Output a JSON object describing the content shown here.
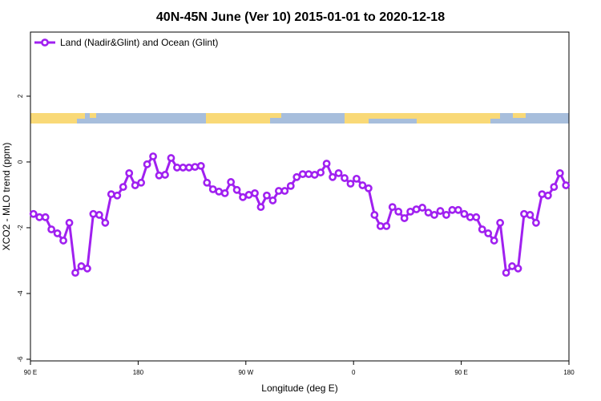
{
  "chart_data": {
    "type": "line",
    "title": "40N-45N June (Ver 10)   2015-01-01 to 2020-12-18",
    "xlabel": "Longitude (deg E)",
    "ylabel": "XCO2 - MLO trend (ppm)",
    "x": [
      92.5,
      97.5,
      102.5,
      107.5,
      112.5,
      117.5,
      122.5,
      127.5,
      132.5,
      137.5,
      142.5,
      147.5,
      152.5,
      157.5,
      162.5,
      167.5,
      172.5,
      177.5,
      182.5,
      187.5,
      192.5,
      197.5,
      202.5,
      207.5,
      212.5,
      217.5,
      222.5,
      227.5,
      232.5,
      237.5,
      242.5,
      247.5,
      252.5,
      257.5,
      262.5,
      267.5,
      272.5,
      277.5,
      282.5,
      287.5,
      292.5,
      297.5,
      302.5,
      307.5,
      312.5,
      317.5,
      322.5,
      327.5,
      332.5,
      337.5,
      342.5,
      347.5,
      352.5,
      357.5,
      362.5,
      367.5,
      372.5,
      377.5,
      382.5,
      387.5,
      392.5,
      397.5,
      402.5,
      407.5,
      412.5,
      417.5,
      422.5,
      427.5,
      432.5,
      437.5,
      442.5,
      447.5,
      452.5,
      457.5,
      462.5,
      467.5,
      472.5,
      477.5,
      482.5,
      487.5,
      492.5,
      497.5,
      502.5,
      507.5,
      512.5,
      517.5,
      522.5,
      527.5,
      532.5,
      537.5
    ],
    "series": [
      {
        "name": "Land (Nadir&Glint) and Ocean (Glint)",
        "color": "#a020f0",
        "values": [
          -1.58,
          -1.68,
          -1.68,
          -2.05,
          -2.17,
          -2.39,
          -1.85,
          -3.37,
          -3.17,
          -3.24,
          -1.58,
          -1.61,
          -1.85,
          -0.98,
          -1.02,
          -0.76,
          -0.34,
          -0.71,
          -0.63,
          -0.07,
          0.17,
          -0.41,
          -0.39,
          0.12,
          -0.17,
          -0.17,
          -0.17,
          -0.15,
          -0.12,
          -0.63,
          -0.83,
          -0.9,
          -0.95,
          -0.61,
          -0.85,
          -1.07,
          -1.0,
          -0.95,
          -1.37,
          -1.02,
          -1.17,
          -0.88,
          -0.88,
          -0.73,
          -0.46,
          -0.37,
          -0.37,
          -0.39,
          -0.32,
          -0.05,
          -0.46,
          -0.34,
          -0.49,
          -0.66,
          -0.51,
          -0.71,
          -0.8,
          -1.61,
          -1.95,
          -1.95,
          -1.37,
          -1.51,
          -1.71,
          -1.51,
          -1.44,
          -1.39,
          -1.54,
          -1.61,
          -1.49,
          -1.61,
          -1.46,
          -1.46,
          -1.58,
          -1.68,
          -1.68,
          -2.05,
          -2.17,
          -2.39,
          -1.85,
          -3.37,
          -3.17,
          -3.24,
          -1.58,
          -1.61,
          -1.85,
          -0.98,
          -1.02,
          -0.76,
          -0.34,
          -0.71
        ]
      }
    ],
    "xlim": [
      90,
      540
    ],
    "xticks": [
      {
        "value": 90,
        "label": "90 E"
      },
      {
        "value": 180,
        "label": "180"
      },
      {
        "value": 270,
        "label": "90 W"
      },
      {
        "value": 360,
        "label": "0"
      },
      {
        "value": 450,
        "label": "90 E"
      },
      {
        "value": 540,
        "label": "180"
      }
    ],
    "ylim": [
      -6.05,
      3.95
    ],
    "yticks": [
      -6,
      -4,
      -2,
      0,
      2
    ],
    "legend": "top-left"
  }
}
